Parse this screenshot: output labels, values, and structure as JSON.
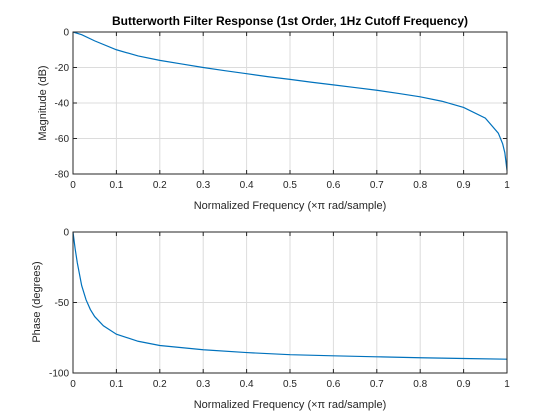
{
  "chart_data": [
    {
      "type": "line",
      "title": "Butterworth Filter Response (1st Order, 1Hz Cutoff Frequency)",
      "xlabel": "Normalized Frequency  (×π rad/sample)",
      "ylabel": "Magnitude (dB)",
      "xlim": [
        0,
        1
      ],
      "ylim": [
        -80,
        0
      ],
      "xticks": [
        "0",
        "0.1",
        "0.2",
        "0.3",
        "0.4",
        "0.5",
        "0.6",
        "0.7",
        "0.8",
        "0.9",
        "1"
      ],
      "yticks": [
        "0",
        "-20",
        "-40",
        "-60",
        "-80"
      ],
      "grid": true,
      "color": "#0072bd",
      "x": [
        0,
        0.02,
        0.05,
        0.1,
        0.15,
        0.2,
        0.25,
        0.3,
        0.35,
        0.4,
        0.45,
        0.5,
        0.55,
        0.6,
        0.65,
        0.7,
        0.75,
        0.8,
        0.85,
        0.9,
        0.95,
        0.98,
        0.99,
        0.995,
        1.0
      ],
      "y": [
        0,
        -1.5,
        -5,
        -10,
        -13.5,
        -16,
        -18,
        -20,
        -21.8,
        -23.5,
        -25.2,
        -26.7,
        -28.3,
        -29.8,
        -31.3,
        -32.8,
        -34.6,
        -36.5,
        -39,
        -42.5,
        -48.5,
        -57,
        -63,
        -68,
        -78
      ]
    },
    {
      "type": "line",
      "title": "",
      "xlabel": "Normalized Frequency  (×π rad/sample)",
      "ylabel": "Phase (degrees)",
      "xlim": [
        0,
        1
      ],
      "ylim": [
        -100,
        0
      ],
      "xticks": [
        "0",
        "0.1",
        "0.2",
        "0.3",
        "0.4",
        "0.5",
        "0.6",
        "0.7",
        "0.8",
        "0.9",
        "1"
      ],
      "yticks": [
        "0",
        "-50",
        "-100"
      ],
      "grid": true,
      "color": "#0072bd",
      "x": [
        0,
        0.005,
        0.01,
        0.02,
        0.03,
        0.04,
        0.05,
        0.07,
        0.1,
        0.15,
        0.2,
        0.3,
        0.4,
        0.5,
        0.6,
        0.7,
        0.8,
        0.9,
        1.0
      ],
      "y": [
        0,
        -12,
        -22,
        -38,
        -48,
        -55,
        -60,
        -66.5,
        -72.5,
        -77.5,
        -80.5,
        -83.5,
        -85.5,
        -87,
        -87.8,
        -88.5,
        -89.2,
        -89.7,
        -90.2
      ]
    }
  ]
}
